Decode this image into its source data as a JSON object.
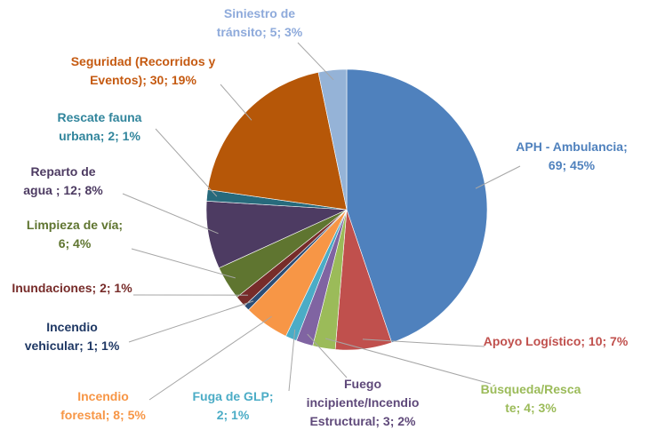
{
  "chart_data": {
    "type": "pie",
    "title": "",
    "slices": [
      {
        "name": "APH - Ambulancia",
        "value": 69,
        "percent": "45%",
        "label_lines": [
          "APH - Ambulancia;",
          "69; 45%"
        ],
        "color": "#4f81bd",
        "label_color": "#4f81bd"
      },
      {
        "name": "Apoyo Logístico",
        "value": 10,
        "percent": "7%",
        "label_lines": [
          "Apoyo Logístico; 10; 7%"
        ],
        "color": "#c0504d",
        "label_color": "#c0504d"
      },
      {
        "name": "Búsqueda/Rescate",
        "value": 4,
        "percent": "3%",
        "label_lines": [
          "Búsqueda/Resca",
          "te; 4; 3%"
        ],
        "color": "#9bbb59",
        "label_color": "#9bbb59"
      },
      {
        "name": "Fuego incipiente/Incendio Estructural",
        "value": 3,
        "percent": "2%",
        "label_lines": [
          "Fuego",
          "incipiente/Incendio",
          "Estructural; 3; 2%"
        ],
        "color": "#8064a2",
        "label_color": "#5f497a"
      },
      {
        "name": "Fuga de GLP",
        "value": 2,
        "percent": "1%",
        "label_lines": [
          "Fuga de GLP;",
          "2; 1%"
        ],
        "color": "#4bacc6",
        "label_color": "#4bacc6"
      },
      {
        "name": "Incendio forestal",
        "value": 8,
        "percent": "5%",
        "label_lines": [
          "Incendio",
          "forestal; 8; 5%"
        ],
        "color": "#f79646",
        "label_color": "#f79646"
      },
      {
        "name": "Incendio vehicular",
        "value": 1,
        "percent": "1%",
        "label_lines": [
          "Incendio",
          "vehicular; 1; 1%"
        ],
        "color": "#2c4d75",
        "label_color": "#1f3864"
      },
      {
        "name": "Inundaciones",
        "value": 2,
        "percent": "1%",
        "label_lines": [
          "Inundaciones; 2; 1%"
        ],
        "color": "#772c2a",
        "label_color": "#772c2a"
      },
      {
        "name": "Limpieza de vía",
        "value": 6,
        "percent": "4%",
        "label_lines": [
          "Limpieza de vía;",
          "6; 4%"
        ],
        "color": "#5f7530",
        "label_color": "#5f7530"
      },
      {
        "name": "Reparto de agua",
        "value": 12,
        "percent": "8%",
        "label_lines": [
          "Reparto de",
          "agua ; 12; 8%"
        ],
        "color": "#4d3b62",
        "label_color": "#4d3b62"
      },
      {
        "name": "Rescate fauna urbana",
        "value": 2,
        "percent": "1%",
        "label_lines": [
          "Rescate fauna",
          "urbana; 2; 1%"
        ],
        "color": "#276a7c",
        "label_color": "#31859c"
      },
      {
        "name": "Seguridad (Recorridos y Eventos)",
        "value": 30,
        "percent": "19%",
        "label_lines": [
          "Seguridad (Recorridos y",
          "Eventos); 30; 19%"
        ],
        "color": "#b65708",
        "label_color": "#c55a11"
      },
      {
        "name": "Siniestro de tránsito",
        "value": 5,
        "percent": "3%",
        "label_lines": [
          "Siniestro de",
          "tránsito; 5; 3%"
        ],
        "color": "#95b3d7",
        "label_color": "#8eaadb"
      }
    ],
    "legend": "none"
  }
}
